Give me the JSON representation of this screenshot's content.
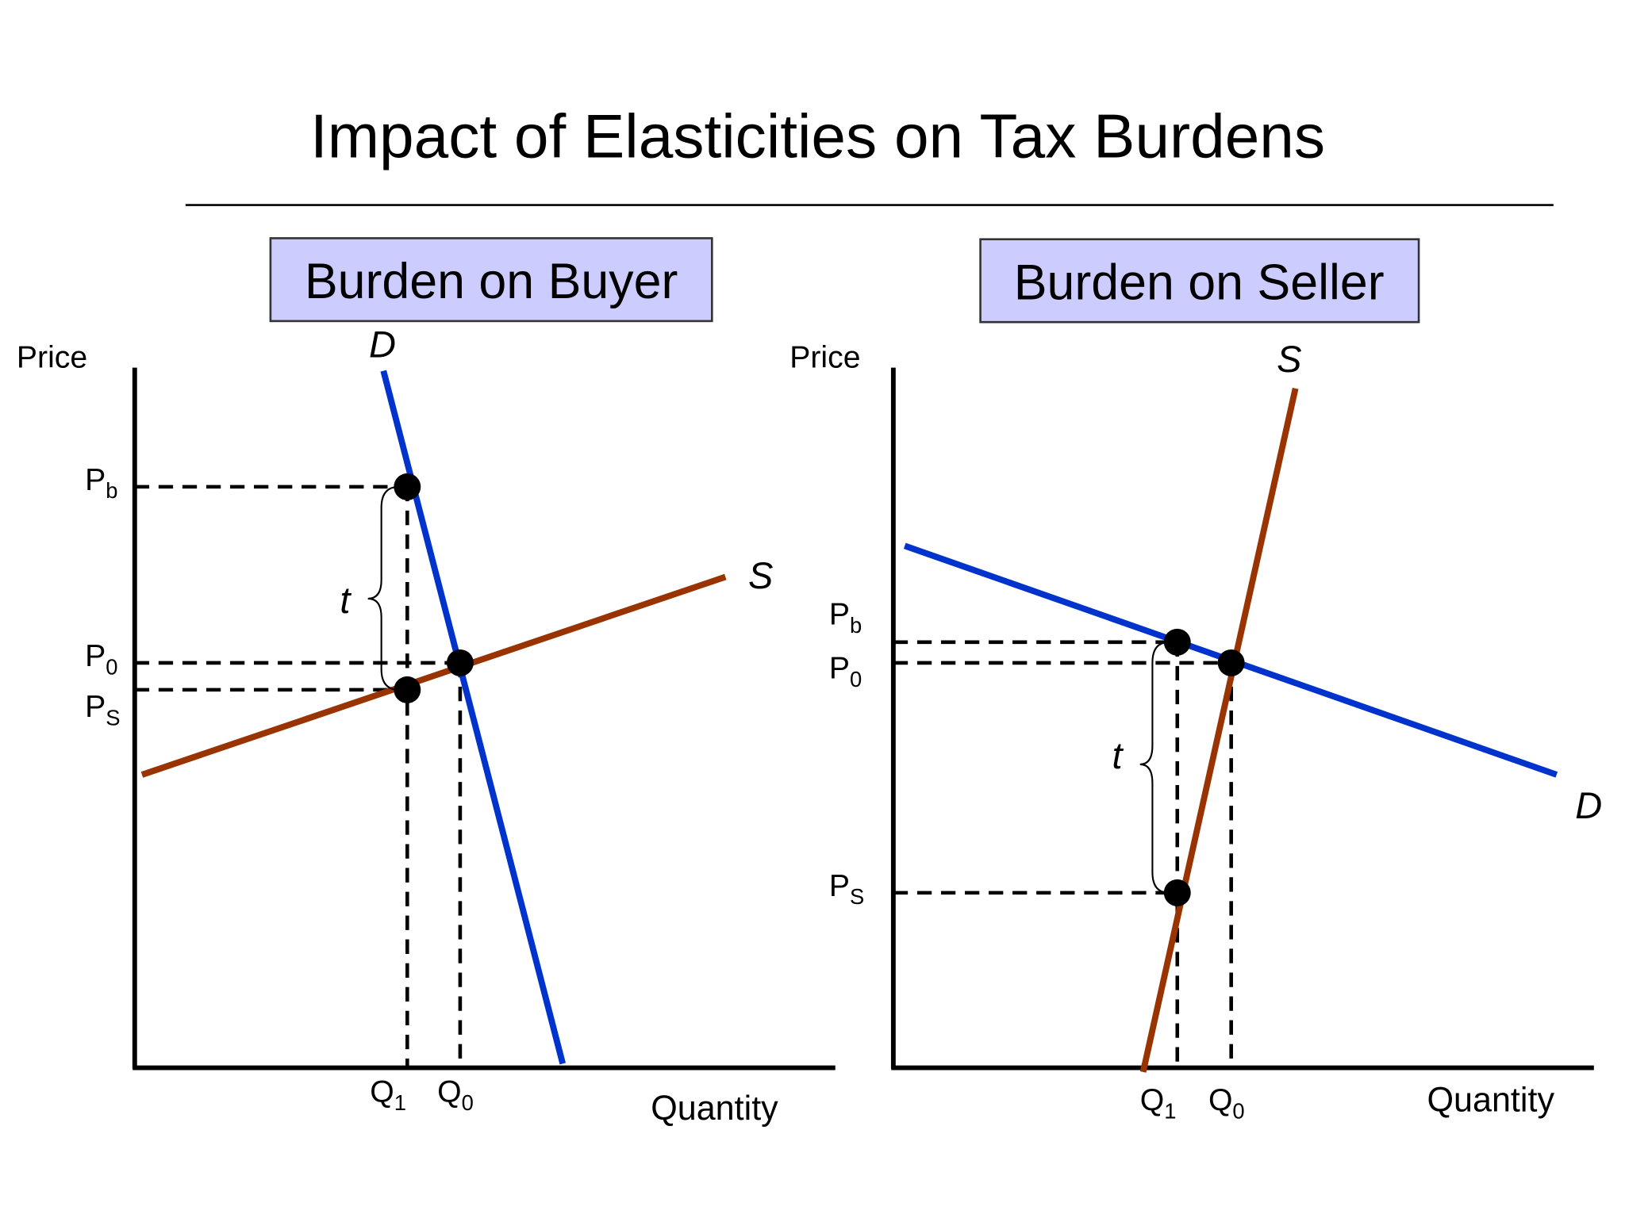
{
  "title": "Impact of Elasticities on Tax Burdens",
  "panels": [
    {
      "heading": "Burden on Buyer",
      "y_axis_label": "Price",
      "x_axis_label": "Quantity",
      "demand_label": "D",
      "supply_label": "S",
      "tax_label": "t",
      "price_labels": [
        {
          "main": "P",
          "sub": "b"
        },
        {
          "main": "P",
          "sub": "0"
        },
        {
          "main": "P",
          "sub": "S"
        }
      ],
      "quantity_labels": [
        {
          "main": "Q",
          "sub": "1"
        },
        {
          "main": "Q",
          "sub": "0"
        }
      ]
    },
    {
      "heading": "Burden on Seller",
      "y_axis_label": "Price",
      "x_axis_label": "Quantity",
      "demand_label": "D",
      "supply_label": "S",
      "tax_label": "t",
      "price_labels": [
        {
          "main": "P",
          "sub": "b"
        },
        {
          "main": "P",
          "sub": "0"
        },
        {
          "main": "P",
          "sub": "S"
        }
      ],
      "quantity_labels": [
        {
          "main": "Q",
          "sub": "1"
        },
        {
          "main": "Q",
          "sub": "0"
        }
      ]
    }
  ]
}
